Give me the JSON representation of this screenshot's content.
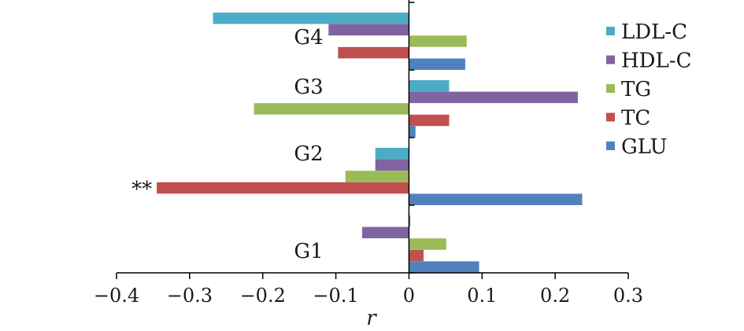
{
  "chart_data": {
    "type": "bar",
    "orientation": "horizontal",
    "categories": [
      "G1",
      "G2",
      "G3",
      "G4"
    ],
    "series": [
      {
        "name": "LDL-C",
        "color": "#4BACC6",
        "values": [
          0.002,
          -0.046,
          0.055,
          -0.268
        ]
      },
      {
        "name": "HDL-C",
        "color": "#8064A2",
        "values": [
          -0.064,
          -0.046,
          0.231,
          -0.11
        ]
      },
      {
        "name": "TG",
        "color": "#9BBB59",
        "values": [
          0.051,
          -0.087,
          -0.212,
          0.079
        ]
      },
      {
        "name": "TC",
        "color": "#C0504D",
        "values": [
          0.02,
          -0.345,
          0.055,
          -0.097
        ]
      },
      {
        "name": "GLU",
        "color": "#4F81BD",
        "values": [
          0.096,
          0.237,
          0.009,
          0.077
        ]
      }
    ],
    "xlabel": "r",
    "ylabel": "",
    "xlim": [
      -0.4,
      0.3
    ],
    "xticks": [
      "−0.4",
      "−0.3",
      "−0.2",
      "−0.1",
      "0",
      "0.1",
      "0.2",
      "0.3"
    ],
    "xtick_values": [
      -0.4,
      -0.3,
      -0.2,
      -0.1,
      0,
      0.1,
      0.2,
      0.3
    ],
    "annotations": [
      {
        "text": "**",
        "category": "G2",
        "series": "TC"
      }
    ],
    "legend_position": "right",
    "grid": false
  }
}
